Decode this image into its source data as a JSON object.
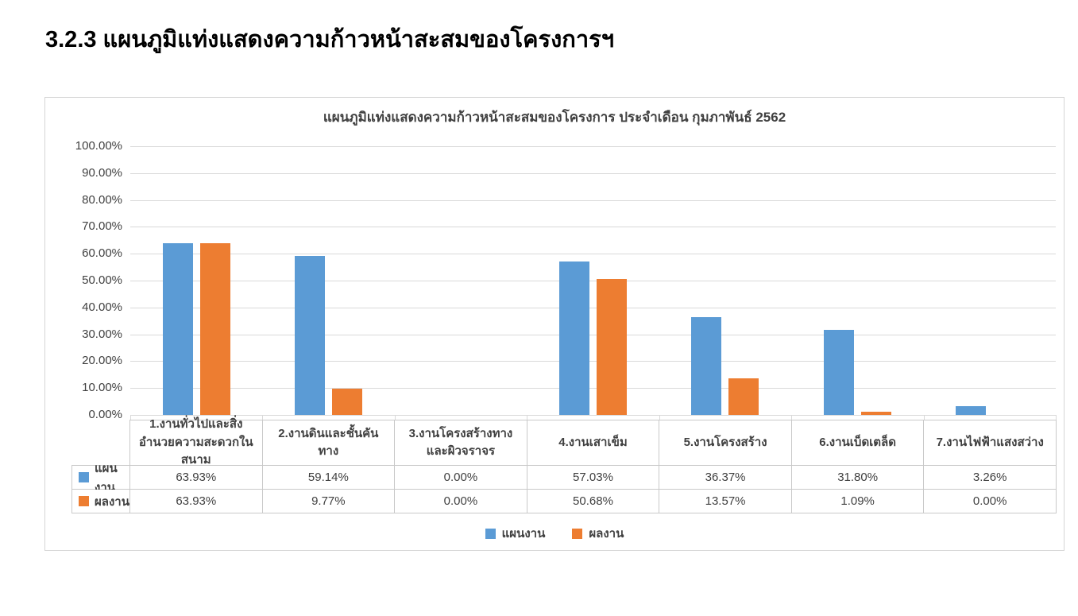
{
  "page": {
    "heading": "3.2.3  แผนภูมิแท่งแสดงความก้าวหน้าสะสมของโครงการฯ"
  },
  "chart_data": {
    "type": "bar",
    "title": "แผนภูมิแท่งแสดงความก้าวหน้าสะสมของโครงการ ประจำเดือน กุมภาพันธ์ 2562",
    "categories": [
      "1.งานทั่วไปและสิ่งอำนวยความสะดวกในสนาม",
      "2.งานดินและชั้นคันทาง",
      "3.งานโครงสร้างทางและผิวจราจร",
      "4.งานเสาเข็ม",
      "5.งานโครงสร้าง",
      "6.งานเบ็ดเตล็ด",
      "7.งานไฟฟ้าแสงสว่าง"
    ],
    "series": [
      {
        "name": "แผนงาน",
        "color": "#5B9BD5",
        "values": [
          63.93,
          59.14,
          0.0,
          57.03,
          36.37,
          31.8,
          3.26
        ]
      },
      {
        "name": "ผลงาน",
        "color": "#ED7D31",
        "values": [
          63.93,
          9.77,
          0.0,
          50.68,
          13.57,
          1.09,
          0.0
        ]
      }
    ],
    "xlabel": "",
    "ylabel": "",
    "ylim": [
      0,
      100
    ],
    "ytick_step": 10,
    "ytick_labels": [
      "0.00%",
      "10.00%",
      "20.00%",
      "30.00%",
      "40.00%",
      "50.00%",
      "60.00%",
      "70.00%",
      "80.00%",
      "90.00%",
      "100.00%"
    ],
    "grid": true,
    "legend_position": "bottom",
    "data_table_with_legend_keys": true
  },
  "colors": {
    "series_plan": "#5B9BD5",
    "series_actual": "#ED7D31",
    "gridline": "#d9d9d9",
    "table_border": "#c9c9c9",
    "text": "#404040"
  }
}
